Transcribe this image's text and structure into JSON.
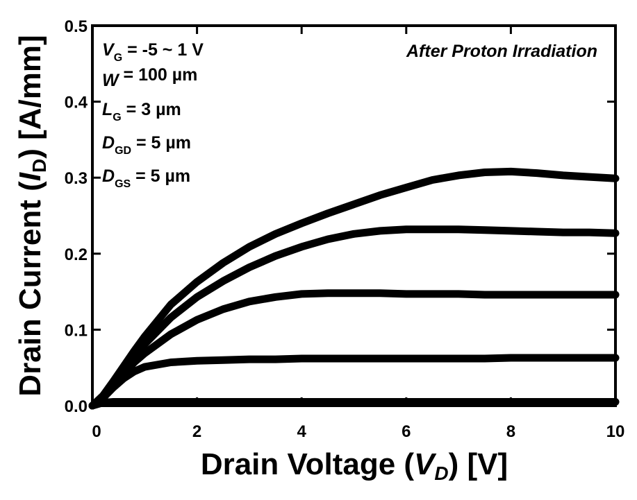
{
  "chart_data": {
    "type": "line",
    "annotation": "After Proton Irradiation",
    "params": [
      {
        "sym": "V",
        "sub": "G",
        "rest": " = -5 ~ 1 V"
      },
      {
        "sym": "W",
        "sub": "",
        "rest": " = 100 µm"
      },
      {
        "sym": "L",
        "sub": "G",
        "rest": " = 3 µm"
      },
      {
        "sym": "D",
        "sub": "GD",
        "rest": " = 5 µm"
      },
      {
        "sym": "D",
        "sub": "GS",
        "rest": " = 5 µm"
      }
    ],
    "xlabel": {
      "pre": "Drain Voltage (",
      "sym": "V",
      "sub": "D",
      "post": ") [V]"
    },
    "ylabel": {
      "pre": "Drain Current (",
      "sym": "I",
      "sub": "D",
      "post": ") [A/mm]"
    },
    "xlim": [
      0,
      10
    ],
    "ylim": [
      0,
      0.5
    ],
    "xticks": [
      0,
      2,
      4,
      6,
      8,
      10
    ],
    "xtick_labels": [
      "0",
      "2",
      "4",
      "6",
      "8",
      "10"
    ],
    "yticks": [
      0.0,
      0.1,
      0.2,
      0.3,
      0.4,
      0.5
    ],
    "ytick_labels": [
      "0.0",
      "0.1",
      "0.2",
      "0.3",
      "0.4",
      "0.5"
    ],
    "grid": false,
    "line_color": "#000000",
    "x": [
      0,
      0.2,
      0.4,
      0.6,
      0.8,
      1,
      1.5,
      2,
      2.5,
      3,
      3.5,
      4,
      4.5,
      5,
      5.5,
      6,
      6.5,
      7,
      7.5,
      8,
      8.5,
      9,
      9.5,
      10
    ],
    "series": [
      {
        "values": [
          0,
          0.013,
          0.032,
          0.052,
          0.072,
          0.091,
          0.133,
          0.163,
          0.188,
          0.209,
          0.226,
          0.24,
          0.253,
          0.265,
          0.277,
          0.287,
          0.297,
          0.303,
          0.307,
          0.308,
          0.306,
          0.303,
          0.301,
          0.299
        ]
      },
      {
        "values": [
          0,
          0.012,
          0.03,
          0.048,
          0.066,
          0.081,
          0.116,
          0.143,
          0.164,
          0.182,
          0.197,
          0.209,
          0.219,
          0.226,
          0.23,
          0.232,
          0.232,
          0.232,
          0.231,
          0.23,
          0.229,
          0.228,
          0.228,
          0.227
        ]
      },
      {
        "values": [
          0,
          0.011,
          0.027,
          0.043,
          0.057,
          0.069,
          0.094,
          0.113,
          0.127,
          0.137,
          0.143,
          0.147,
          0.148,
          0.148,
          0.148,
          0.147,
          0.147,
          0.147,
          0.146,
          0.146,
          0.146,
          0.146,
          0.146,
          0.146
        ]
      },
      {
        "values": [
          0,
          0.01,
          0.024,
          0.036,
          0.045,
          0.051,
          0.057,
          0.059,
          0.06,
          0.061,
          0.061,
          0.062,
          0.062,
          0.062,
          0.062,
          0.062,
          0.062,
          0.062,
          0.062,
          0.063,
          0.063,
          0.063,
          0.063,
          0.063
        ]
      },
      {
        "values": [
          0,
          0.004,
          0.005,
          0.005,
          0.005,
          0.005,
          0.005,
          0.005,
          0.005,
          0.005,
          0.005,
          0.005,
          0.005,
          0.005,
          0.005,
          0.005,
          0.005,
          0.005,
          0.005,
          0.005,
          0.005,
          0.005,
          0.005,
          0.005
        ]
      }
    ]
  }
}
